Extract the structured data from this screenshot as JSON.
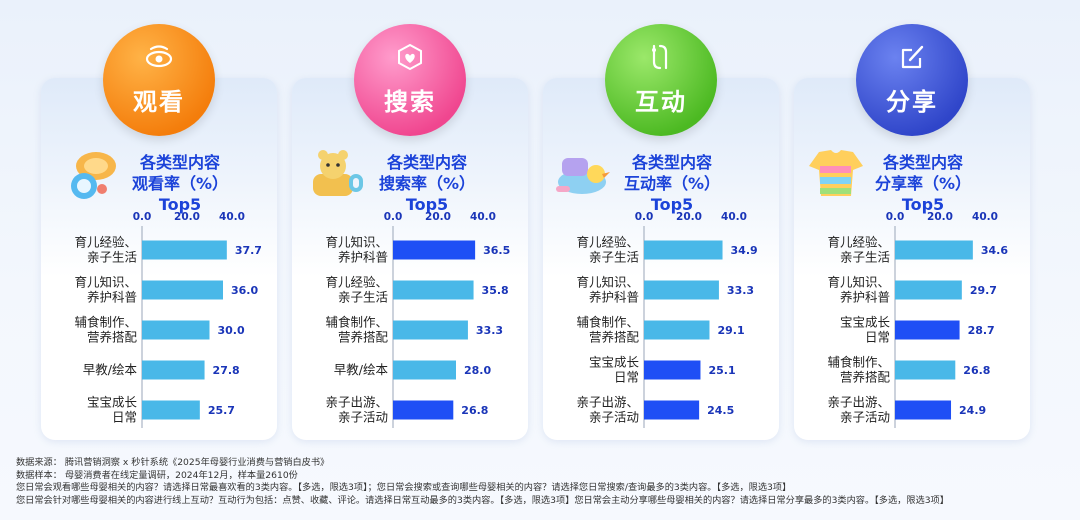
{
  "colors": {
    "bar_normal": "#49b8e8",
    "bar_highlight": "#1e4ff5",
    "axis_text": "#1a35b8",
    "title_text": "#1c43d9",
    "value_text": "#1a35b8"
  },
  "panels": [
    {
      "badge_label": "观看",
      "badge_color_a": "#ffb347",
      "badge_color_b": "#f47d0b",
      "badge_icon": "eye-icon",
      "panel_icon": "baby-rattle-icon",
      "title_lines": [
        "各类型内容",
        "观看率（%）",
        "Top5"
      ]
    },
    {
      "badge_label": "搜索",
      "badge_color_a": "#ff9ccc",
      "badge_color_b": "#f0468f",
      "badge_icon": "search-heart-icon",
      "panel_icon": "bear-cup-icon",
      "title_lines": [
        "各类型内容",
        "搜索率（%）",
        "Top5"
      ]
    },
    {
      "badge_label": "互动",
      "badge_color_a": "#9be86a",
      "badge_color_b": "#4cb922",
      "badge_icon": "interaction-icon",
      "panel_icon": "bathtub-toy-icon",
      "title_lines": [
        "各类型内容",
        "互动率（%）",
        "Top5"
      ]
    },
    {
      "badge_label": "分享",
      "badge_color_a": "#6b82f0",
      "badge_color_b": "#2f45c9",
      "badge_icon": "share-edit-icon",
      "panel_icon": "baby-onesie-icon",
      "title_lines": [
        "各类型内容",
        "分享率（%）",
        "Top5"
      ]
    }
  ],
  "chart_data": [
    {
      "type": "bar",
      "orientation": "horizontal",
      "title": "各类型内容观看率（%）Top5",
      "xlim": [
        0,
        40
      ],
      "x_ticks": [
        "0.0",
        "20.0",
        "40.0"
      ],
      "categories": [
        [
          "育儿经验、",
          "亲子生活"
        ],
        [
          "育儿知识、",
          "养护科普"
        ],
        [
          "辅食制作、",
          "营养搭配"
        ],
        [
          "早教/绘本"
        ],
        [
          "宝宝成长",
          "日常"
        ]
      ],
      "values": [
        37.7,
        36.0,
        30.0,
        27.8,
        25.7
      ],
      "highlighted": [
        false,
        false,
        false,
        false,
        false
      ]
    },
    {
      "type": "bar",
      "orientation": "horizontal",
      "title": "各类型内容搜索率（%）Top5",
      "xlim": [
        0,
        40
      ],
      "x_ticks": [
        "0.0",
        "20.0",
        "40.0"
      ],
      "categories": [
        [
          "育儿知识、",
          "养护科普"
        ],
        [
          "育儿经验、",
          "亲子生活"
        ],
        [
          "辅食制作、",
          "营养搭配"
        ],
        [
          "早教/绘本"
        ],
        [
          "亲子出游、",
          "亲子活动"
        ]
      ],
      "values": [
        36.5,
        35.8,
        33.3,
        28.0,
        26.8
      ],
      "highlighted": [
        true,
        false,
        false,
        false,
        true
      ]
    },
    {
      "type": "bar",
      "orientation": "horizontal",
      "title": "各类型内容互动率（%）Top5",
      "xlim": [
        0,
        40
      ],
      "x_ticks": [
        "0.0",
        "20.0",
        "40.0"
      ],
      "categories": [
        [
          "育儿经验、",
          "亲子生活"
        ],
        [
          "育儿知识、",
          "养护科普"
        ],
        [
          "辅食制作、",
          "营养搭配"
        ],
        [
          "宝宝成长",
          "日常"
        ],
        [
          "亲子出游、",
          "亲子活动"
        ]
      ],
      "values": [
        34.9,
        33.3,
        29.1,
        25.1,
        24.5
      ],
      "highlighted": [
        false,
        false,
        false,
        true,
        true
      ]
    },
    {
      "type": "bar",
      "orientation": "horizontal",
      "title": "各类型内容分享率（%）Top5",
      "xlim": [
        0,
        40
      ],
      "x_ticks": [
        "0.0",
        "20.0",
        "40.0"
      ],
      "categories": [
        [
          "育儿经验、",
          "亲子生活"
        ],
        [
          "育儿知识、",
          "养护科普"
        ],
        [
          "宝宝成长",
          "日常"
        ],
        [
          "辅食制作、",
          "营养搭配"
        ],
        [
          "亲子出游、",
          "亲子活动"
        ]
      ],
      "values": [
        34.6,
        29.7,
        28.7,
        26.8,
        24.9
      ],
      "highlighted": [
        false,
        false,
        true,
        false,
        true
      ]
    }
  ],
  "notes": {
    "source": "数据来源：  腾讯营销洞察 x 秒针系统《2025年母婴行业消费与营销白皮书》",
    "sample": "数据样本：  母婴消费者在线定量调研，2024年12月，样本量2610份",
    "question1": "您日常会观看哪些母婴相关的内容？请选择日常最喜欢看的3类内容。【多选，限选3项】；您日常会搜索或查询哪些母婴相关的内容？请选择您日常搜索/查询最多的3类内容。【多选，限选3项】",
    "question2": "您日常会针对哪些母婴相关的内容进行线上互动？互动行为包括：点赞、收藏、评论。请选择日常互动最多的3类内容。【多选，限选3项】您日常会主动分享哪些母婴相关的内容？请选择日常分享最多的3类内容。【多选，限选3项】"
  }
}
